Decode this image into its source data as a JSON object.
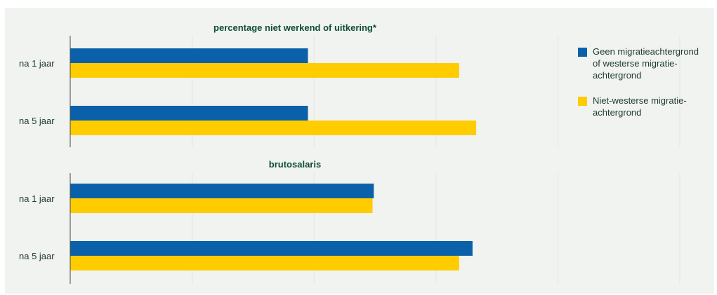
{
  "chart_data": [
    {
      "type": "bar",
      "orientation": "horizontal",
      "title": "percentage niet werkend of uitkering*",
      "categories": [
        "na 1 jaar",
        "na 5 jaar"
      ],
      "series": [
        {
          "name": "Geen migratieachtergrond of westerse migratie-achtergrond",
          "values": [
            0.195,
            0.195
          ]
        },
        {
          "name": "Niet-westerse migratie-achtergrond",
          "values": [
            0.319,
            0.333
          ]
        }
      ],
      "xlim": [
        0,
        0.5
      ],
      "gridlines": [
        0,
        0.1,
        0.2,
        0.3,
        0.4,
        0.5
      ],
      "tick_labels_shown": false,
      "grid": true
    },
    {
      "type": "bar",
      "orientation": "horizontal",
      "title": "brutosalaris",
      "categories": [
        "na 1 jaar",
        "na 5 jaar"
      ],
      "series": [
        {
          "name": "Geen migratieachtergrond of westerse migratie-achtergrond",
          "values": [
            0.249,
            0.33
          ]
        },
        {
          "name": "Niet-westerse migratie-achtergrond",
          "values": [
            0.248,
            0.319
          ]
        }
      ],
      "xlim": [
        0,
        0.5
      ],
      "gridlines": [
        0,
        0.1,
        0.2,
        0.3,
        0.4,
        0.5
      ],
      "tick_labels_shown": false,
      "grid": true
    }
  ],
  "legend": {
    "placement": "right",
    "items": [
      {
        "lines": [
          "Geen migratieachtergrond",
          "of westerse migratie-",
          "achtergrond"
        ],
        "color": "#0a61a9"
      },
      {
        "lines": [
          "Niet-westerse migratie-",
          "achtergrond"
        ],
        "color": "#ffcc00"
      }
    ]
  },
  "colors": {
    "background": "#f0f3ef",
    "series_blue": "#0a61a9",
    "series_yellow": "#ffcc00",
    "gridline": "#e2e6e1",
    "axis": "#444444",
    "title": "#0e4d36"
  }
}
